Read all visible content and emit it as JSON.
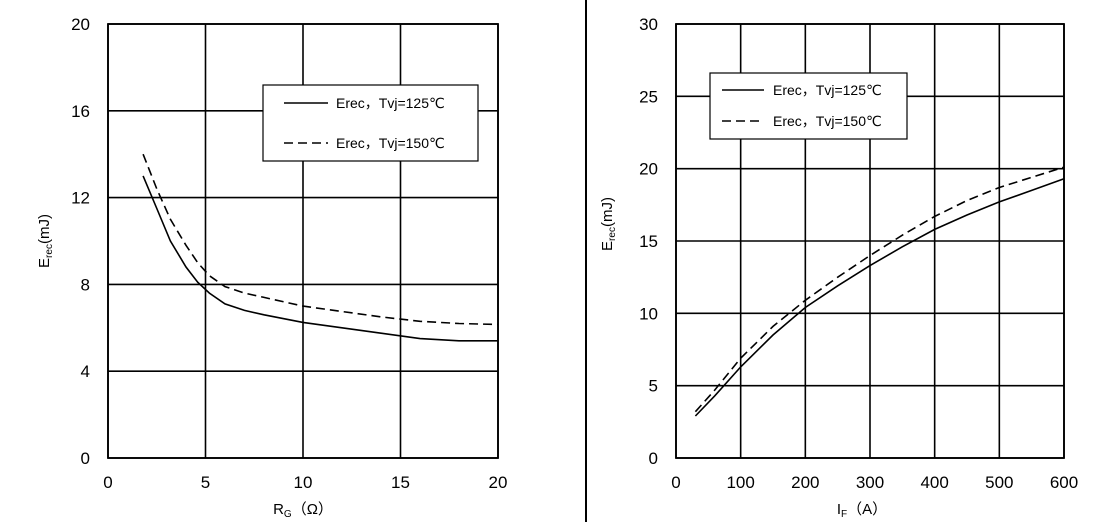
{
  "chart_data": [
    {
      "type": "line",
      "xlabel_main": "R",
      "xlabel_sub": "G",
      "xlabel_unit": "（Ω）",
      "ylabel_main": "E",
      "ylabel_sub": "rec",
      "ylabel_unit": "(mJ)",
      "xlim": [
        0,
        20
      ],
      "ylim": [
        0,
        20
      ],
      "xticks": [
        "0",
        "5",
        "10",
        "15",
        "20"
      ],
      "yticks": [
        "0",
        "4",
        "8",
        "12",
        "16",
        "20"
      ],
      "grid": true,
      "legend_position": "top-right",
      "series": [
        {
          "name": "Erec，Tvj=125℃",
          "style": "solid",
          "x": [
            1.8,
            2.5,
            3.2,
            4,
            4.6,
            5.2,
            6,
            7,
            8,
            10,
            12,
            14,
            16,
            18,
            20
          ],
          "y": [
            13,
            11.5,
            10,
            8.8,
            8.1,
            7.6,
            7.1,
            6.8,
            6.6,
            6.25,
            6.0,
            5.75,
            5.5,
            5.4,
            5.4
          ]
        },
        {
          "name": "Erec，Tvj=150℃",
          "style": "dashed",
          "x": [
            1.8,
            2.5,
            3.2,
            4,
            4.6,
            5.2,
            6,
            7,
            8,
            10,
            12,
            14,
            16,
            18,
            20
          ],
          "y": [
            14,
            12.4,
            11,
            9.8,
            9.0,
            8.4,
            7.9,
            7.6,
            7.4,
            7.0,
            6.75,
            6.5,
            6.3,
            6.2,
            6.15
          ]
        }
      ]
    },
    {
      "type": "line",
      "xlabel_main": "I",
      "xlabel_sub": "F",
      "xlabel_unit": "（A）",
      "ylabel_main": "E",
      "ylabel_sub": "rec",
      "ylabel_unit": "(mJ)",
      "xlim": [
        0,
        600
      ],
      "ylim": [
        0,
        30
      ],
      "xticks": [
        "0",
        "100",
        "200",
        "300",
        "400",
        "500",
        "600"
      ],
      "yticks": [
        "0",
        "5",
        "10",
        "15",
        "20",
        "25",
        "30"
      ],
      "grid": true,
      "legend_position": "top-left",
      "series": [
        {
          "name": "Erec，Tvj=125℃",
          "style": "solid",
          "x": [
            30,
            60,
            100,
            150,
            200,
            250,
            300,
            350,
            400,
            450,
            500,
            550,
            600
          ],
          "y": [
            2.9,
            4.3,
            6.3,
            8.5,
            10.4,
            11.9,
            13.3,
            14.6,
            15.8,
            16.8,
            17.7,
            18.5,
            19.3
          ]
        },
        {
          "name": "Erec，Tvj=150℃",
          "style": "dashed",
          "x": [
            30,
            60,
            100,
            150,
            200,
            250,
            300,
            350,
            400,
            450,
            500,
            550,
            600
          ],
          "y": [
            3.2,
            4.7,
            6.9,
            9.1,
            10.9,
            12.5,
            14.0,
            15.4,
            16.7,
            17.8,
            18.7,
            19.4,
            20.1
          ]
        }
      ]
    }
  ]
}
